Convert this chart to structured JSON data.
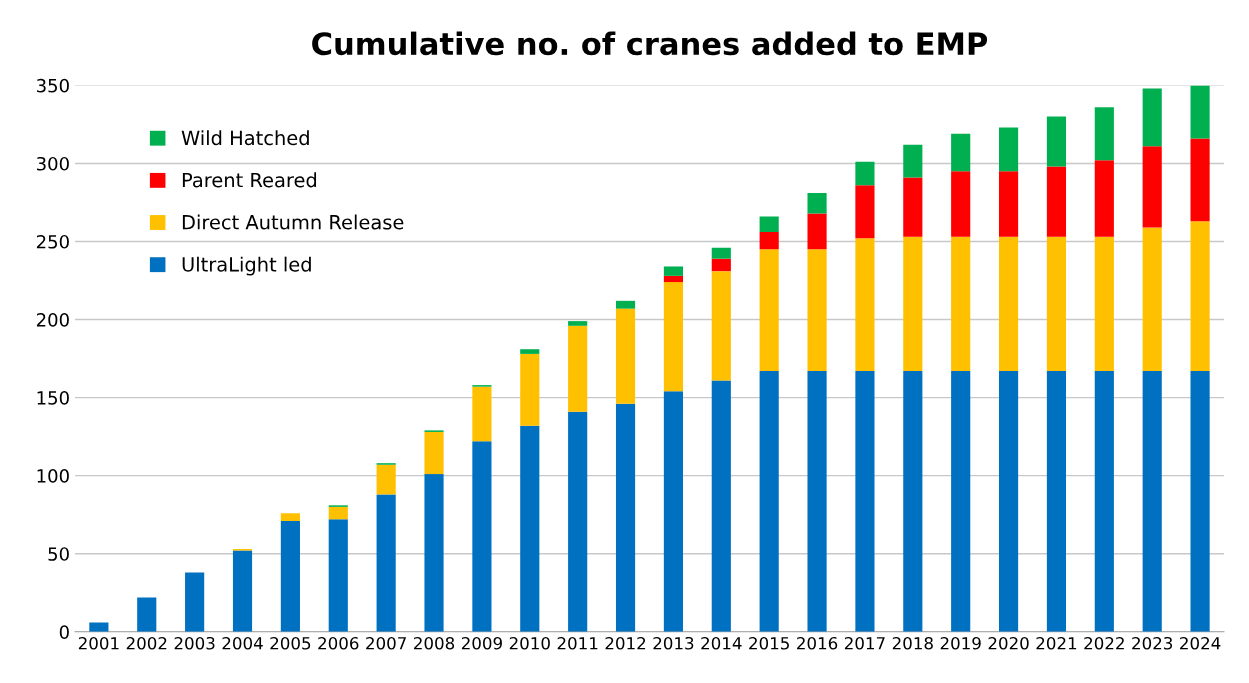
{
  "chart_data": {
    "type": "bar",
    "title": "Cumulative no. of cranes added to EMP",
    "stacked": true,
    "categories": [
      "2001",
      "2002",
      "2003",
      "2004",
      "2005",
      "2006",
      "2007",
      "2008",
      "2009",
      "2010",
      "2011",
      "2012",
      "2013",
      "2014",
      "2015",
      "2016",
      "2017",
      "2018",
      "2019",
      "2020",
      "2021",
      "2022",
      "2023",
      "2024"
    ],
    "series": [
      {
        "name": "UltraLight led",
        "color": "#0070c0",
        "values": [
          6,
          22,
          38,
          52,
          71,
          72,
          88,
          101,
          122,
          132,
          141,
          146,
          154,
          161,
          167,
          167,
          167,
          167,
          167,
          167,
          167,
          167,
          167,
          167
        ]
      },
      {
        "name": "Direct Autumn Release",
        "color": "#ffc000",
        "values": [
          0,
          0,
          0,
          1,
          5,
          8,
          19,
          27,
          35,
          46,
          55,
          61,
          70,
          70,
          78,
          78,
          85,
          86,
          86,
          86,
          86,
          86,
          92,
          96
        ]
      },
      {
        "name": "Parent Reared",
        "color": "#ff0000",
        "values": [
          0,
          0,
          0,
          0,
          0,
          0,
          0,
          0,
          0,
          0,
          0,
          0,
          4,
          8,
          11,
          23,
          34,
          38,
          42,
          42,
          45,
          49,
          52,
          53
        ]
      },
      {
        "name": "Wild Hatched",
        "color": "#00b050",
        "values": [
          0,
          0,
          0,
          0,
          0,
          1,
          1,
          1,
          1,
          3,
          3,
          5,
          6,
          7,
          10,
          13,
          15,
          21,
          24,
          28,
          32,
          34,
          37,
          34
        ]
      }
    ],
    "ylim": [
      0,
      350
    ],
    "yticks": [
      0,
      50,
      100,
      150,
      200,
      250,
      300,
      350
    ],
    "grid": "y",
    "legend": "top left"
  }
}
